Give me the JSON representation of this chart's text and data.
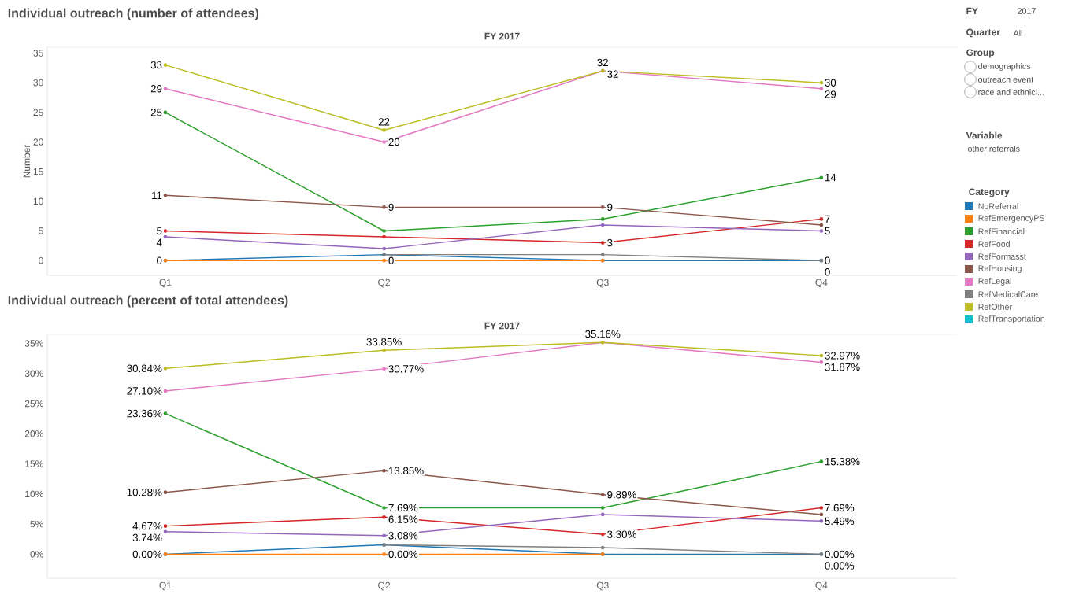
{
  "chart_data": [
    {
      "type": "line",
      "title": "Individual outreach (number of attendees)",
      "subtitle": "FY 2017",
      "ylabel": "Number",
      "categories": [
        "Q1",
        "Q2",
        "Q3",
        "Q4"
      ],
      "ylim": [
        -2.5,
        36
      ],
      "yticks": [
        0,
        5,
        10,
        15,
        20,
        25,
        30,
        35
      ],
      "marker": "circle",
      "legend": "right",
      "legend_title": "Category",
      "series": [
        {
          "name": "NoReferral",
          "color": "#1f77b4",
          "values": [
            0,
            1,
            0,
            0
          ],
          "value_labels": [
            "0",
            null,
            null,
            "0"
          ]
        },
        {
          "name": "RefEmergencyPS",
          "color": "#ff7f0e",
          "values": [
            0,
            0,
            0,
            null
          ],
          "value_labels": [
            null,
            "0",
            null,
            null
          ]
        },
        {
          "name": "RefFinancial",
          "color": "#2ca02c",
          "values": [
            25,
            5,
            7,
            14
          ],
          "value_labels": [
            "25",
            null,
            null,
            "14"
          ]
        },
        {
          "name": "RefFood",
          "color": "#d62728",
          "values": [
            5,
            4,
            3,
            7
          ],
          "value_labels": [
            "5",
            null,
            "3",
            "7"
          ]
        },
        {
          "name": "RefFormasst",
          "color": "#9467bd",
          "values": [
            4,
            2,
            6,
            5
          ],
          "value_labels": [
            "4",
            null,
            null,
            "5"
          ]
        },
        {
          "name": "RefHousing",
          "color": "#8c564b",
          "values": [
            11,
            9,
            9,
            6
          ],
          "value_labels": [
            "11",
            "9",
            "9",
            null
          ]
        },
        {
          "name": "RefLegal",
          "color": "#e377c2",
          "values": [
            29,
            20,
            32,
            29
          ],
          "value_labels": [
            "29",
            "20",
            "32",
            "29"
          ]
        },
        {
          "name": "RefMedicalCare",
          "color": "#7f7f7f",
          "values": [
            null,
            1,
            1,
            0
          ],
          "value_labels": [
            null,
            null,
            null,
            "0"
          ]
        },
        {
          "name": "RefOther",
          "color": "#bcbd22",
          "values": [
            33,
            22,
            32,
            30
          ],
          "value_labels": [
            "33",
            "22",
            "32",
            "30"
          ]
        },
        {
          "name": "RefTransportation",
          "color": "#17becf",
          "values": [
            null,
            null,
            null,
            null
          ]
        }
      ]
    },
    {
      "type": "line",
      "title": "Individual outreach (percent of total attendees)",
      "subtitle": "FY 2017",
      "categories": [
        "Q1",
        "Q2",
        "Q3",
        "Q4"
      ],
      "ylim": [
        -4,
        36.5
      ],
      "yticks": [
        {
          "value": 0,
          "label": "0%"
        },
        {
          "value": 5,
          "label": "5%"
        },
        {
          "value": 10,
          "label": "10%"
        },
        {
          "value": 15,
          "label": "15%"
        },
        {
          "value": 20,
          "label": "20%"
        },
        {
          "value": 25,
          "label": "25%"
        },
        {
          "value": 30,
          "label": "30%"
        },
        {
          "value": 35,
          "label": "35%"
        }
      ],
      "marker": "circle",
      "series": [
        {
          "color": "#1f77b4",
          "values": [
            0,
            1.54,
            0,
            0
          ],
          "value_labels": [
            "0.00%",
            null,
            null,
            "0.00%"
          ]
        },
        {
          "color": "#ff7f0e",
          "values": [
            0,
            0,
            0,
            null
          ],
          "value_labels": [
            null,
            "0.00%",
            null,
            null
          ]
        },
        {
          "color": "#2ca02c",
          "values": [
            23.36,
            7.69,
            7.69,
            15.38
          ],
          "value_labels": [
            "23.36%",
            "7.69%",
            null,
            "15.38%"
          ]
        },
        {
          "color": "#d62728",
          "values": [
            4.67,
            6.15,
            3.3,
            7.69
          ],
          "value_labels": [
            "4.67%",
            "6.15%",
            "3.30%",
            "7.69%"
          ]
        },
        {
          "color": "#9467bd",
          "values": [
            3.74,
            3.08,
            6.59,
            5.49
          ],
          "value_labels": [
            "3.74%",
            "3.08%",
            null,
            "5.49%"
          ]
        },
        {
          "color": "#8c564b",
          "values": [
            10.28,
            13.85,
            9.89,
            6.59
          ],
          "value_labels": [
            "10.28%",
            "13.85%",
            "9.89%",
            null
          ]
        },
        {
          "color": "#e377c2",
          "values": [
            27.1,
            30.77,
            35.16,
            31.87
          ],
          "value_labels": [
            "27.10%",
            "30.77%",
            "35.16%",
            "31.87%"
          ]
        },
        {
          "color": "#7f7f7f",
          "values": [
            null,
            1.54,
            1.1,
            0
          ],
          "value_labels": [
            null,
            null,
            null,
            "0.00%"
          ]
        },
        {
          "color": "#bcbd22",
          "values": [
            30.84,
            33.85,
            35.16,
            32.97
          ],
          "value_labels": [
            "30.84%",
            "33.85%",
            null,
            "32.97%"
          ]
        },
        {
          "color": "#17becf",
          "values": [
            null,
            null,
            null,
            null
          ]
        }
      ]
    },
    {
      "type": "other",
      "annotations": [
        "FY",
        "2017",
        "Quarter",
        "All",
        "Group",
        "demographics",
        "outreach event",
        "race and ethnici...",
        "Variable",
        "other referrals"
      ]
    }
  ]
}
